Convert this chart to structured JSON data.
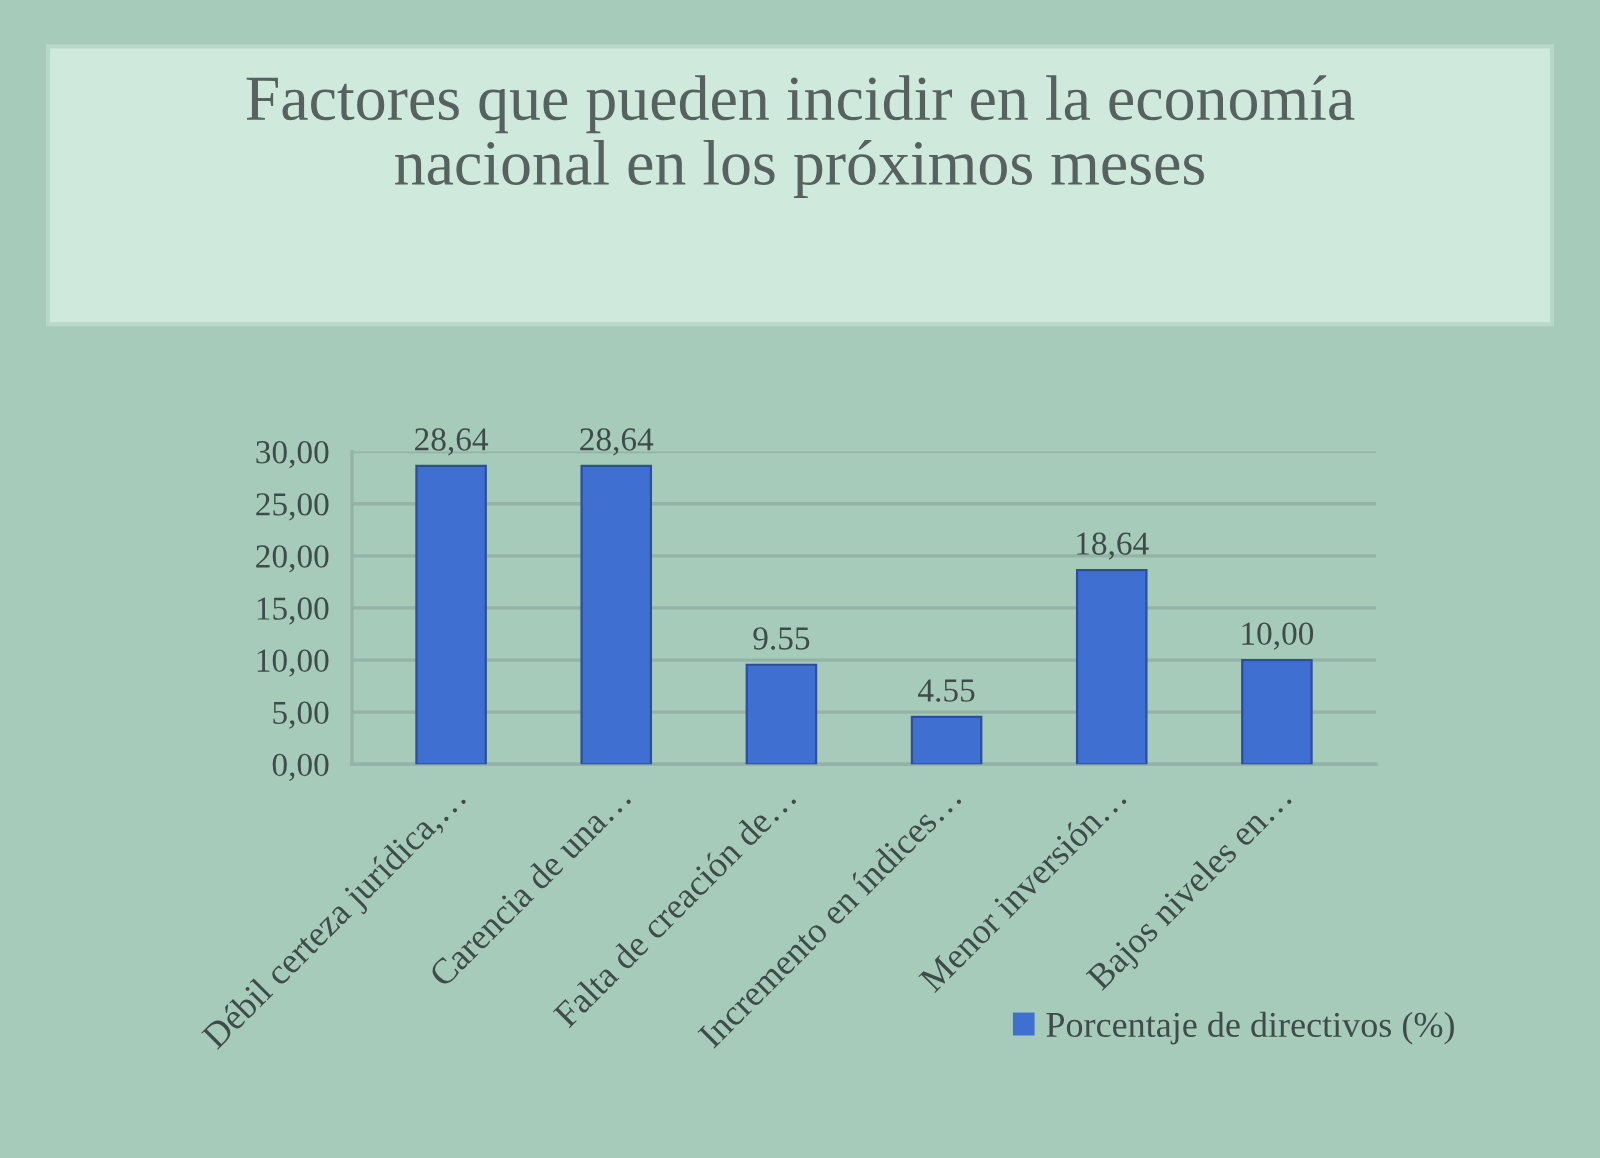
{
  "chart_data": {
    "type": "bar",
    "title": "Factores que pueden incidir en la economía\nnacional en los próximos meses",
    "categories": [
      "Débil certeza jurídica,…",
      "Carencia de una…",
      "Falta de creación de…",
      "Incremento en índices…",
      "Menor inversión…",
      "Bajos niveles en…"
    ],
    "series": [
      {
        "name": "Porcentaje de directivos (%)",
        "color": "#3f6fd0",
        "values": [
          28.64,
          28.64,
          9.55,
          4.55,
          18.64,
          10.0
        ],
        "value_labels": [
          "28,64",
          "28,64",
          "9.55",
          "4.55",
          "18,64",
          "10,00"
        ]
      }
    ],
    "ylim": [
      0,
      30
    ],
    "yticks": [
      {
        "value": 0,
        "label": "0,00"
      },
      {
        "value": 5,
        "label": "5,00"
      },
      {
        "value": 10,
        "label": "10,00"
      },
      {
        "value": 15,
        "label": "15,00"
      },
      {
        "value": 20,
        "label": "20,00"
      },
      {
        "value": 25,
        "label": "25,00"
      },
      {
        "value": 30,
        "label": "30,00"
      }
    ],
    "grid": "y",
    "legend": "bottom right"
  }
}
